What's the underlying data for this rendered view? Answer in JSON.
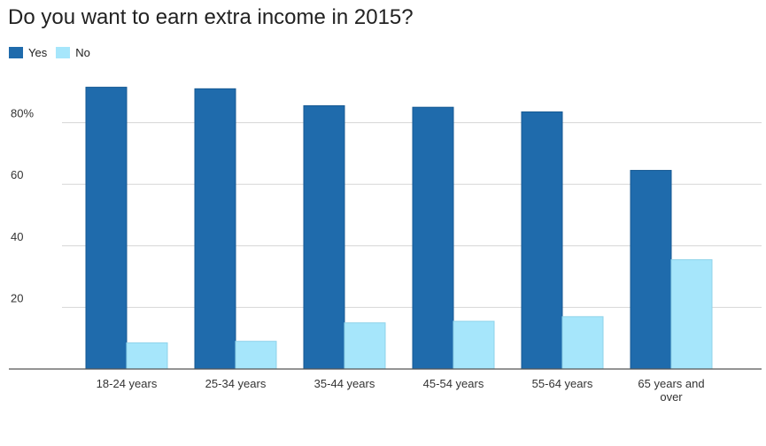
{
  "chart_data": {
    "type": "bar",
    "title": "Do you want to earn extra income in 2015?",
    "categories": [
      "18-24 years",
      "25-34 years",
      "35-44 years",
      "45-54 years",
      "55-64 years",
      "65 years and over"
    ],
    "category_lines": [
      [
        "18-24 years"
      ],
      [
        "25-34 years"
      ],
      [
        "35-44 years"
      ],
      [
        "45-54 years"
      ],
      [
        "55-64 years"
      ],
      [
        "65 years and",
        "over"
      ]
    ],
    "series": [
      {
        "name": "Yes",
        "color": "#1f6bac",
        "values": [
          91.5,
          91,
          85.5,
          85,
          83.5,
          64.5
        ]
      },
      {
        "name": "No",
        "color": "#a6e6fb",
        "values": [
          8.5,
          9,
          15,
          15.5,
          17,
          35.5
        ]
      }
    ],
    "yticks": [
      {
        "value": 20,
        "label": "20"
      },
      {
        "value": 40,
        "label": "40"
      },
      {
        "value": 60,
        "label": "60"
      },
      {
        "value": 80,
        "label": "80%"
      }
    ],
    "ylim": [
      0,
      100
    ],
    "xlabel": "",
    "ylabel": "",
    "grid": true,
    "legend_position": "top-left"
  }
}
